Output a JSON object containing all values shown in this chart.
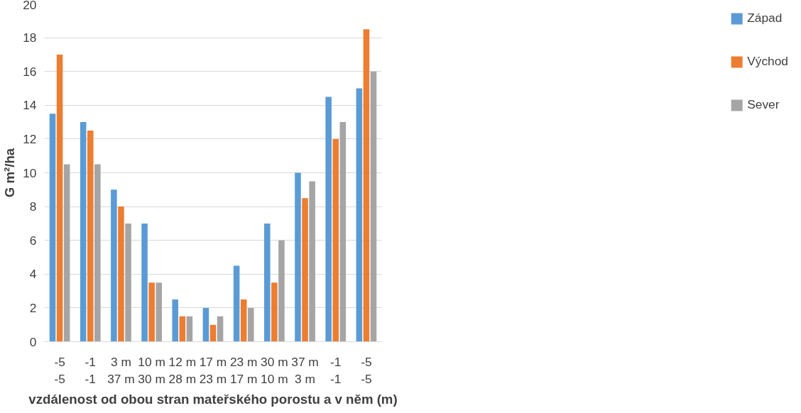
{
  "chart_data": {
    "type": "bar",
    "ylabel": "G m²/ha",
    "xlabel": "vzdálenost od obou stran mateřského porostu a v něm (m)",
    "categories": [
      "-5\n-5",
      "-1\n-1",
      "3 m\n37 m",
      "10 m\n30 m",
      "12 m\n28 m",
      "17 m\n23 m",
      "23 m\n17 m",
      "30 m\n10 m",
      "37 m\n3 m",
      "-1\n-1",
      "-5\n-5"
    ],
    "series": [
      {
        "name": "Západ",
        "color": "#5b9bd5",
        "values": [
          13.5,
          13,
          9,
          7,
          2.5,
          2,
          4.5,
          7,
          10,
          14.5,
          15
        ]
      },
      {
        "name": "Východ",
        "color": "#ed7d31",
        "values": [
          17,
          12.5,
          8,
          3.5,
          1.5,
          1,
          2.5,
          3.5,
          8.5,
          12,
          18.5
        ]
      },
      {
        "name": "Sever",
        "color": "#a5a5a5",
        "values": [
          10.5,
          10.5,
          7,
          3.5,
          1.5,
          1.5,
          2,
          6,
          9.5,
          13,
          16
        ]
      }
    ],
    "ylim": [
      0,
      20
    ],
    "yticks": [
      0,
      2,
      4,
      6,
      8,
      10,
      12,
      14,
      16,
      18,
      20
    ],
    "grid": "y",
    "legend": "right"
  }
}
